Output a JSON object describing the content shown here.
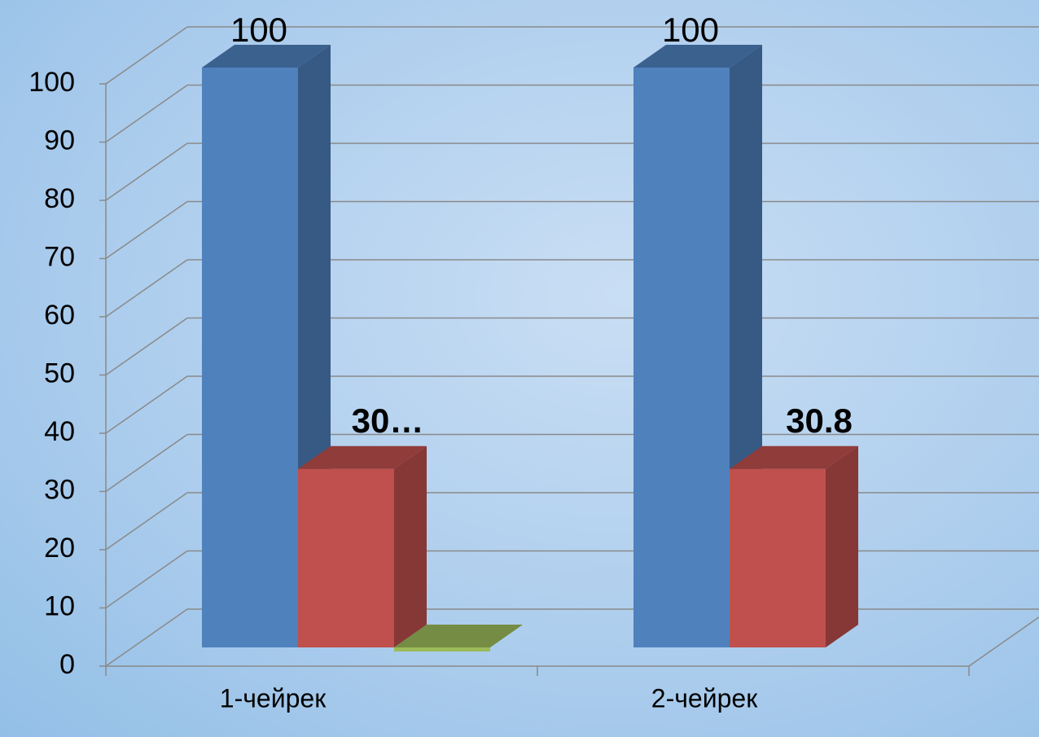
{
  "chart_data": {
    "type": "bar3d",
    "categories": [
      "1-чейрек",
      "2-чейрек"
    ],
    "series": [
      {
        "color": "#4f81bd",
        "values": [
          100,
          100
        ],
        "value_labels": [
          "100",
          "100"
        ]
      },
      {
        "color": "#c0504d",
        "values": [
          30.8,
          30.8
        ],
        "value_labels": [
          "30…",
          "30.8"
        ]
      },
      {
        "color": "#9bbb59",
        "values": [
          0,
          null
        ],
        "value_labels": [
          null,
          null
        ]
      }
    ],
    "ylim": [
      0,
      100
    ],
    "yticks": [
      0,
      10,
      20,
      30,
      40,
      50,
      60,
      70,
      80,
      90,
      100
    ],
    "grid": true
  }
}
